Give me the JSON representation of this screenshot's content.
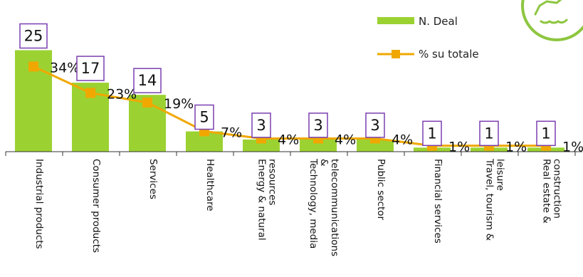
{
  "chart_data": {
    "type": "bar",
    "categories": [
      [
        "Industrial products"
      ],
      [
        "Consumer products"
      ],
      [
        "Services"
      ],
      [
        "Healthcare"
      ],
      [
        "Energy & natural",
        "resources"
      ],
      [
        "Technology, media",
        "&",
        "telecommunications"
      ],
      [
        "Public sector"
      ],
      [
        "Financial services"
      ],
      [
        "Travel, tourism &",
        "leisure"
      ],
      [
        "Real estate &",
        "construction"
      ]
    ],
    "series": [
      {
        "name": "N. Deal",
        "type": "bar",
        "values": [
          25,
          17,
          14,
          5,
          3,
          3,
          3,
          1,
          1,
          1
        ]
      },
      {
        "name": "% su totale",
        "type": "line",
        "values": [
          34,
          23,
          19,
          7,
          4,
          4,
          4,
          1,
          1,
          1
        ]
      }
    ],
    "value_labels": [
      "25",
      "17",
      "14",
      "5",
      "3",
      "3",
      "3",
      "1",
      "1",
      "1"
    ],
    "percent_labels": [
      "34%",
      "23%",
      "19%",
      "7%",
      "4%",
      "4%",
      "4%",
      "1%",
      "1%",
      "1%"
    ],
    "legend": {
      "position": "top-right"
    },
    "grid": false
  },
  "colors": {
    "bar": "#9bd232",
    "line": "#f0a800",
    "marker": "#f0a800",
    "label_box_border": "#7a3fb0",
    "logo": "#8dc63f"
  },
  "logo_icon": "handshake-icon"
}
